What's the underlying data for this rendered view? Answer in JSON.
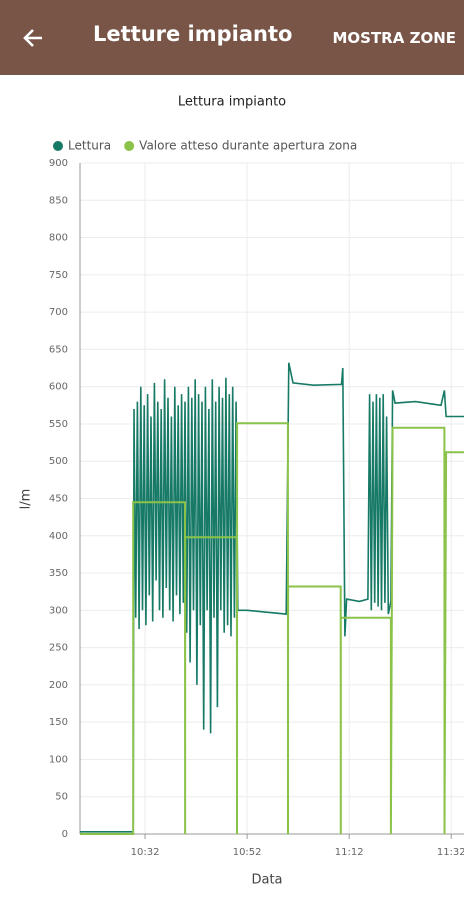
{
  "app_bar": {
    "title": "Letture impianto",
    "action": "MOSTRA ZONE"
  },
  "chart_data": {
    "type": "line",
    "title": "Lettura impianto",
    "xlabel": "Data",
    "ylabel": "l/m",
    "legend": "top-left",
    "grid": true,
    "xlim": [
      "10:19:15",
      "11:34:30"
    ],
    "xticks": [
      "10:32",
      "10:52",
      "11:12",
      "11:32"
    ],
    "ylim": [
      0,
      900
    ],
    "yticks": [
      0,
      50,
      100,
      150,
      200,
      250,
      300,
      350,
      400,
      450,
      500,
      550,
      600,
      650,
      700,
      750,
      800,
      850,
      900
    ],
    "series": [
      {
        "name": "Lettura",
        "color": "#177a66",
        "x": [
          "10:19:15",
          "10:29:40",
          "10:29:50",
          "10:30:10",
          "10:30:30",
          "10:30:50",
          "10:31:10",
          "10:31:30",
          "10:31:50",
          "10:32:10",
          "10:32:30",
          "10:32:50",
          "10:33:10",
          "10:33:30",
          "10:33:50",
          "10:34:10",
          "10:34:30",
          "10:34:50",
          "10:35:10",
          "10:35:30",
          "10:35:50",
          "10:36:10",
          "10:36:30",
          "10:36:50",
          "10:37:10",
          "10:37:30",
          "10:37:50",
          "10:38:10",
          "10:38:30",
          "10:38:50",
          "10:39:10",
          "10:39:30",
          "10:39:50",
          "10:40:10",
          "10:40:30",
          "10:40:50",
          "10:41:10",
          "10:41:30",
          "10:41:50",
          "10:42:10",
          "10:42:30",
          "10:42:50",
          "10:43:10",
          "10:43:30",
          "10:43:50",
          "10:44:10",
          "10:44:30",
          "10:44:50",
          "10:45:10",
          "10:45:30",
          "10:45:50",
          "10:46:10",
          "10:46:30",
          "10:46:50",
          "10:47:10",
          "10:47:30",
          "10:47:50",
          "10:48:10",
          "10:48:30",
          "10:48:50",
          "10:49:10",
          "10:49:30",
          "10:49:50",
          "10:50:10",
          "10:52:00",
          "10:55:00",
          "10:59:40",
          "11:00:10",
          "11:01:00",
          "11:05:00",
          "11:10:30",
          "11:10:45",
          "11:11:10",
          "11:11:30",
          "11:14:00",
          "11:15:40",
          "11:16:00",
          "11:16:20",
          "11:16:40",
          "11:17:00",
          "11:17:20",
          "11:17:40",
          "11:18:00",
          "11:18:20",
          "11:18:40",
          "11:19:00",
          "11:19:20",
          "11:19:40",
          "11:20:10",
          "11:20:30",
          "11:21:00",
          "11:25:00",
          "11:30:00",
          "11:30:40",
          "11:31:00",
          "11:34:30"
        ],
        "values": [
          3,
          3,
          570,
          290,
          580,
          275,
          600,
          300,
          575,
          280,
          590,
          320,
          560,
          285,
          605,
          340,
          580,
          300,
          570,
          290,
          610,
          330,
          585,
          300,
          560,
          285,
          600,
          320,
          575,
          295,
          590,
          310,
          580,
          270,
          600,
          230,
          585,
          300,
          610,
          200,
          590,
          280,
          580,
          140,
          600,
          300,
          570,
          135,
          610,
          290,
          580,
          170,
          600,
          300,
          585,
          270,
          612,
          280,
          590,
          265,
          600,
          290,
          580,
          300,
          300,
          298,
          295,
          632,
          605,
          602,
          603,
          625,
          265,
          315,
          312,
          315,
          590,
          300,
          580,
          310,
          590,
          305,
          585,
          300,
          590,
          310,
          560,
          295,
          312,
          595,
          578,
          580,
          575,
          595,
          560,
          560
        ]
      },
      {
        "name": "Valore atteso durante apertura zona",
        "color": "#8bc34a",
        "x": [
          "10:19:15",
          "10:29:40",
          "10:29:41",
          "10:39:50",
          "10:39:51",
          "10:39:52",
          "10:50:00",
          "10:50:01",
          "10:50:02",
          "11:00:00",
          "11:00:01",
          "11:00:02",
          "11:10:20",
          "11:10:21",
          "11:10:22",
          "11:20:10",
          "11:20:11",
          "11:20:30",
          "11:30:40",
          "11:30:41",
          "11:31:00",
          "11:34:30"
        ],
        "values": [
          0,
          0,
          445,
          445,
          0,
          398,
          398,
          0,
          551,
          551,
          0,
          332,
          332,
          0,
          290,
          290,
          0,
          545,
          545,
          0,
          512,
          512
        ]
      }
    ]
  }
}
